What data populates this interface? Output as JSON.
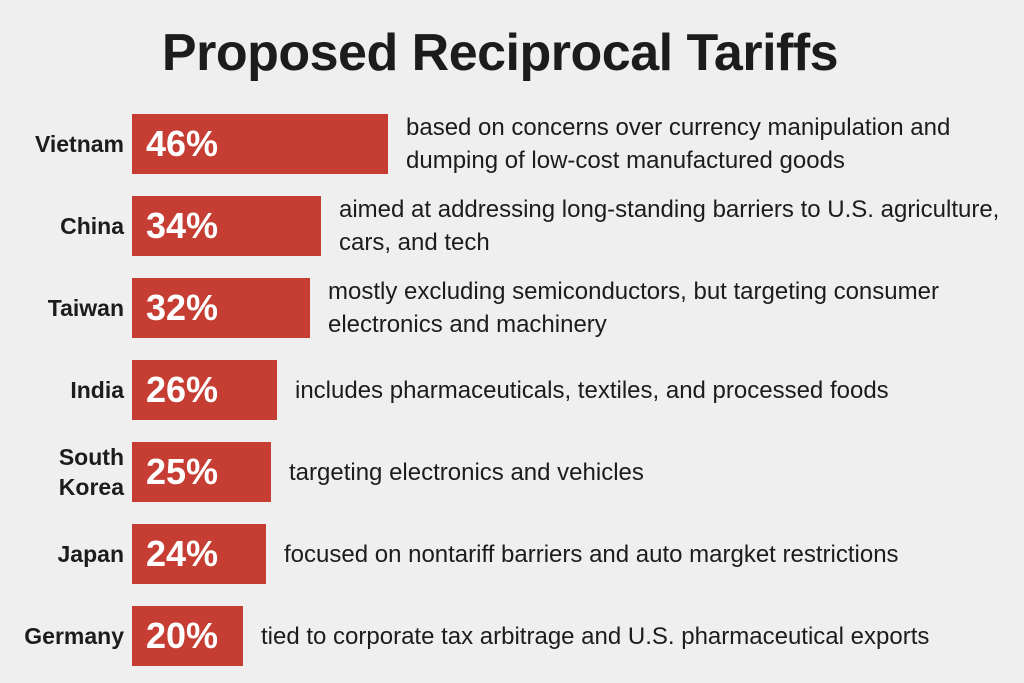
{
  "chart_data": {
    "type": "bar",
    "orientation": "horizontal",
    "title": "Proposed Reciprocal Tariffs",
    "categories": [
      "Vietnam",
      "China",
      "Taiwan",
      "India",
      "South\nKorea",
      "Japan",
      "Germany"
    ],
    "values": [
      46,
      34,
      32,
      26,
      25,
      24,
      20
    ],
    "labels": [
      "46%",
      "34%",
      "32%",
      "26%",
      "25%",
      "24%",
      "20%"
    ],
    "annotations": [
      "based on concerns over currency manipulation and dumping of low-cost manufactured goods",
      "aimed at addressing long-standing barriers to U.S. agriculture, cars, and tech",
      "mostly excluding semiconductors, but targeting consumer electronics and machinery",
      "includes pharmaceuticals, textiles, and processed foods",
      "targeting electronics and vehicles",
      "focused on nontariff barriers and auto margket restrictions",
      "tied to corporate tax arbitrage and U.S. pharmaceutical exports"
    ],
    "xlim": [
      0,
      46
    ],
    "bar_color": "#c53d33"
  }
}
